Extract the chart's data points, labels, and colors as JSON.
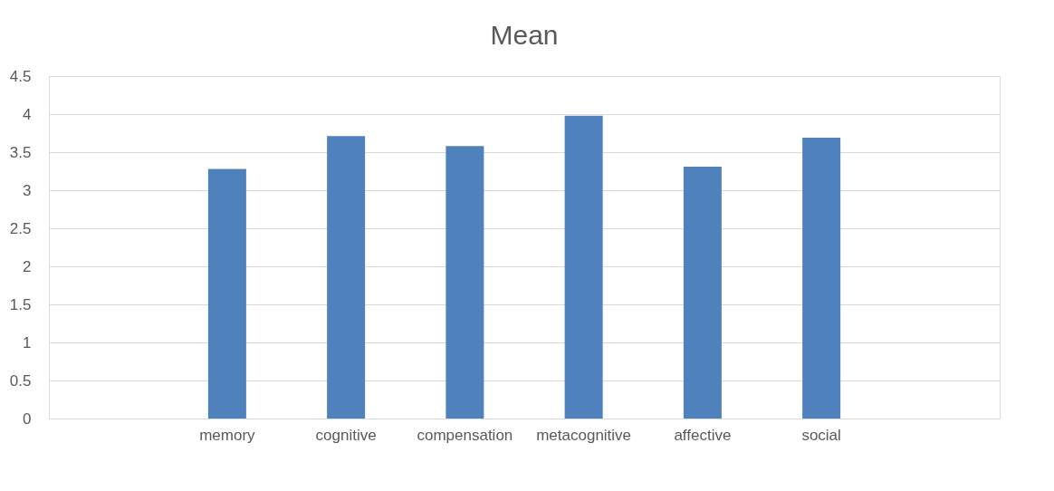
{
  "chart_data": {
    "type": "bar",
    "title": "Mean",
    "categories": [
      null,
      "memory",
      "cognitive",
      "compensation",
      "metacognitive",
      "affective",
      "social",
      null
    ],
    "values": [
      null,
      3.28,
      3.71,
      3.58,
      3.98,
      3.31,
      3.69,
      null
    ],
    "color": "#4f81bd",
    "ylim": [
      0,
      4.5
    ],
    "yticks": [
      0,
      0.5,
      1,
      1.5,
      2,
      2.5,
      3,
      3.5,
      4,
      4.5
    ],
    "grid": "y"
  }
}
